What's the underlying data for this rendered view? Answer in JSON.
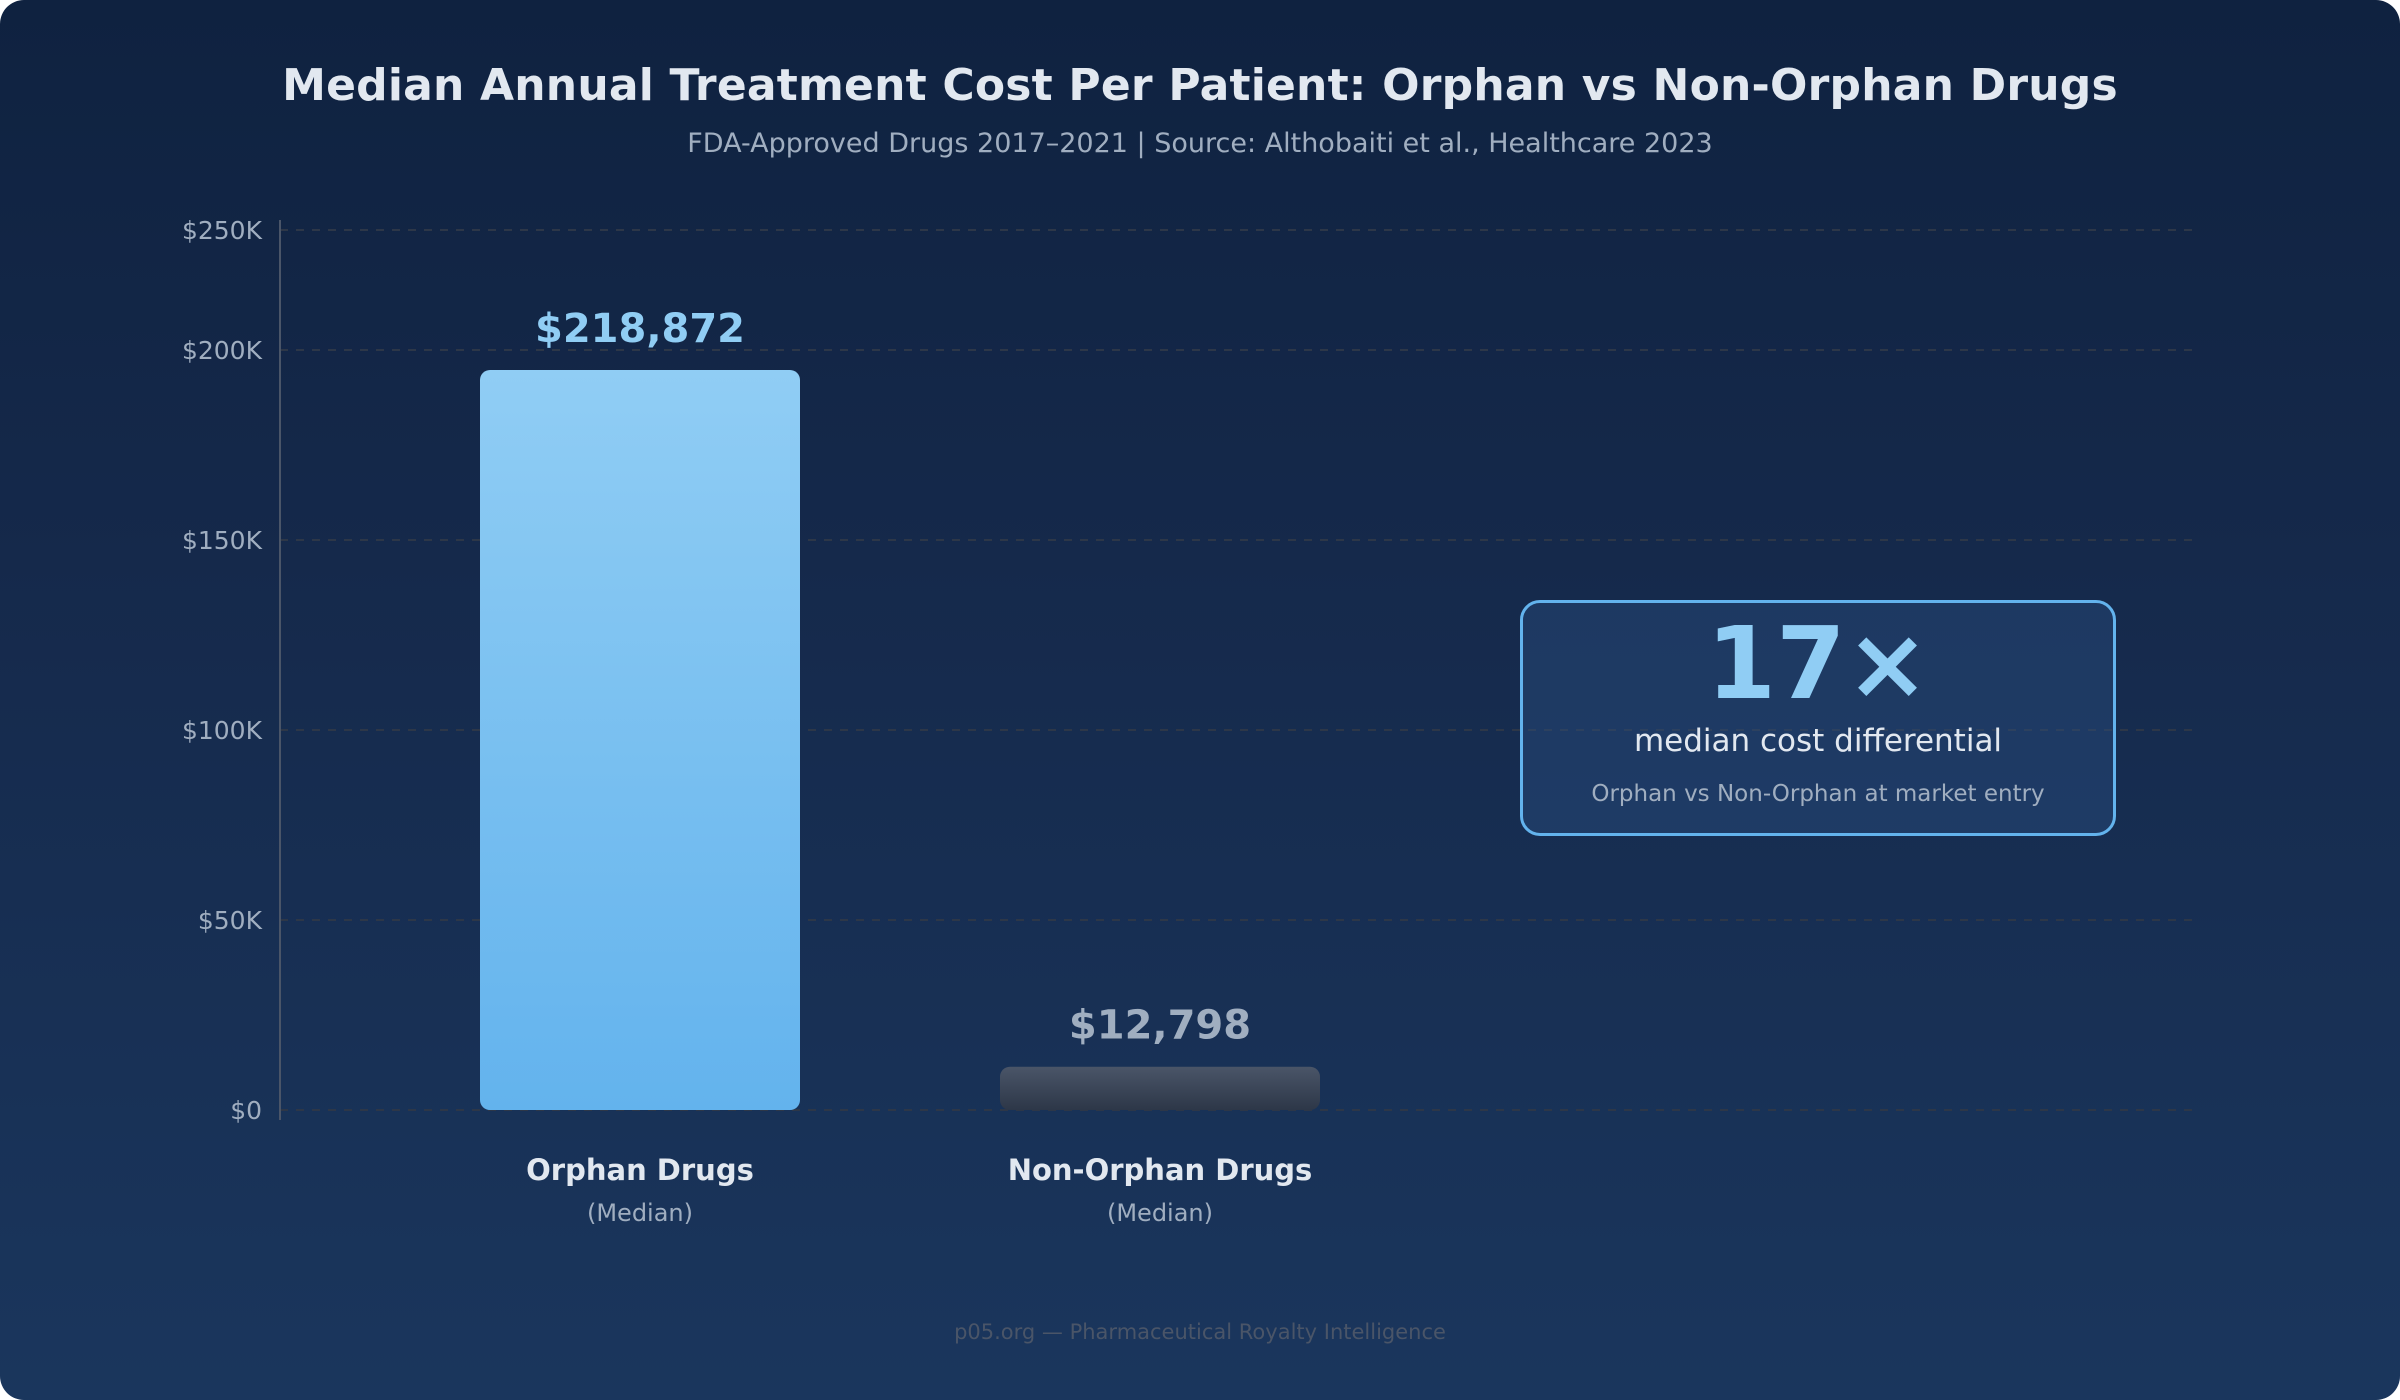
{
  "chart_data": {
    "type": "bar",
    "title": "Median Annual Treatment Cost Per Patient: Orphan vs Non-Orphan Drugs",
    "subtitle": "FDA-Approved Drugs 2017–2021 | Source: Althobaiti et al., Healthcare 2023",
    "xlabel": "",
    "ylabel": "",
    "ylim": [
      0,
      250000
    ],
    "grid": true,
    "y_ticks": [
      {
        "value": 0,
        "label": "$0"
      },
      {
        "value": 50000,
        "label": "$50K"
      },
      {
        "value": 100000,
        "label": "$100K"
      },
      {
        "value": 150000,
        "label": "$150K"
      },
      {
        "value": 200000,
        "label": "$200K"
      },
      {
        "value": 250000,
        "label": "$250K"
      }
    ],
    "categories": [
      {
        "label": "Orphan Drugs",
        "sublabel": "(Median)"
      },
      {
        "label": "Non-Orphan Drugs",
        "sublabel": "(Median)"
      }
    ],
    "values": [
      218872,
      12798
    ],
    "data_labels": [
      "$218,872",
      "$12,798"
    ],
    "bar_colors": [
      {
        "top": "#90cdf4",
        "bottom": "#63b3ed",
        "label": "#90cdf4"
      },
      {
        "top": "#4a5568",
        "bottom": "#2d3748",
        "label": "#a0aec0"
      }
    ],
    "annotation": {
      "headline": "17×",
      "text": "median cost differential",
      "subtext": "Orphan vs Non-Orphan at market entry"
    }
  },
  "footer": "p05.org — Pharmaceutical Royalty Intelligence",
  "colors": {
    "accent": "#63b3ed",
    "accent_light": "#90cdf4",
    "text_primary": "#e2e8f0",
    "text_secondary": "#a0aec0",
    "grid": "#2d3748"
  }
}
